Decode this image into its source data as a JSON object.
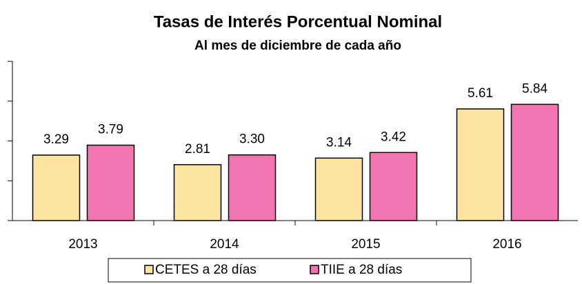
{
  "chart_data": {
    "type": "bar",
    "title": "Tasas de Interés Porcentual Nominal",
    "subtitle": "Al mes de diciembre de cada año",
    "categories": [
      "2013",
      "2014",
      "2015",
      "2016"
    ],
    "series": [
      {
        "name": "CETES a 28 días",
        "color": "#fde3a0",
        "values": [
          3.29,
          2.81,
          3.14,
          5.61
        ],
        "value_labels": [
          "3.29",
          "2.81",
          "3.14",
          "5.61"
        ]
      },
      {
        "name": "TIIE a 28 días",
        "color": "#f274b0",
        "values": [
          3.79,
          3.3,
          3.42,
          5.84
        ],
        "value_labels": [
          "3.79",
          "3.30",
          "3.42",
          "5.84"
        ]
      }
    ],
    "ylim": [
      0,
      8
    ],
    "yticks": [
      0,
      2,
      4,
      6,
      8
    ],
    "grid": false,
    "legend": "bottom"
  }
}
